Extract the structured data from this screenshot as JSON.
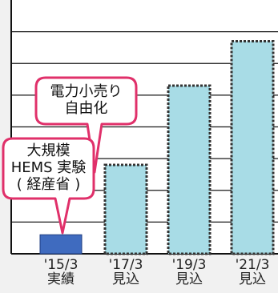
{
  "chart_data": {
    "type": "bar",
    "categories": [
      {
        "year": "'15/3",
        "status": "実績"
      },
      {
        "year": "'17/3",
        "status": "見込"
      },
      {
        "year": "'19/3",
        "status": "見込"
      },
      {
        "year": "'21/3",
        "status": "見込"
      }
    ],
    "values": [
      0.6,
      2.8,
      5.3,
      6.7
    ],
    "ylim": [
      0,
      8
    ],
    "y_gridlines": [
      1,
      2,
      3,
      4,
      5,
      6,
      7
    ],
    "grid": true,
    "bar_styles": [
      {
        "fill": "#3f6bbf",
        "stroke": "#1f3e82",
        "dashed": false
      },
      {
        "fill": "#a8dce6",
        "stroke": "#333333",
        "dashed": true
      },
      {
        "fill": "#a8dce6",
        "stroke": "#333333",
        "dashed": true
      },
      {
        "fill": "#a8dce6",
        "stroke": "#333333",
        "dashed": true
      }
    ],
    "annotations": [
      {
        "lines": [
          "電力小売り",
          "自由化"
        ],
        "points_to": "'17/3"
      },
      {
        "lines": [
          "大規模",
          "HEMS 実験",
          "( 経産省 )"
        ],
        "points_to": "'15/3"
      }
    ]
  },
  "colors": {
    "background": "#f1f1f1",
    "plot_background": "#ffffff",
    "grid": "#1a1a1a",
    "accent_bar": "#3f6bbf",
    "forecast_bar": "#a8dce6",
    "callout_border": "#e0306a",
    "callout_fill": "#ffffff"
  }
}
